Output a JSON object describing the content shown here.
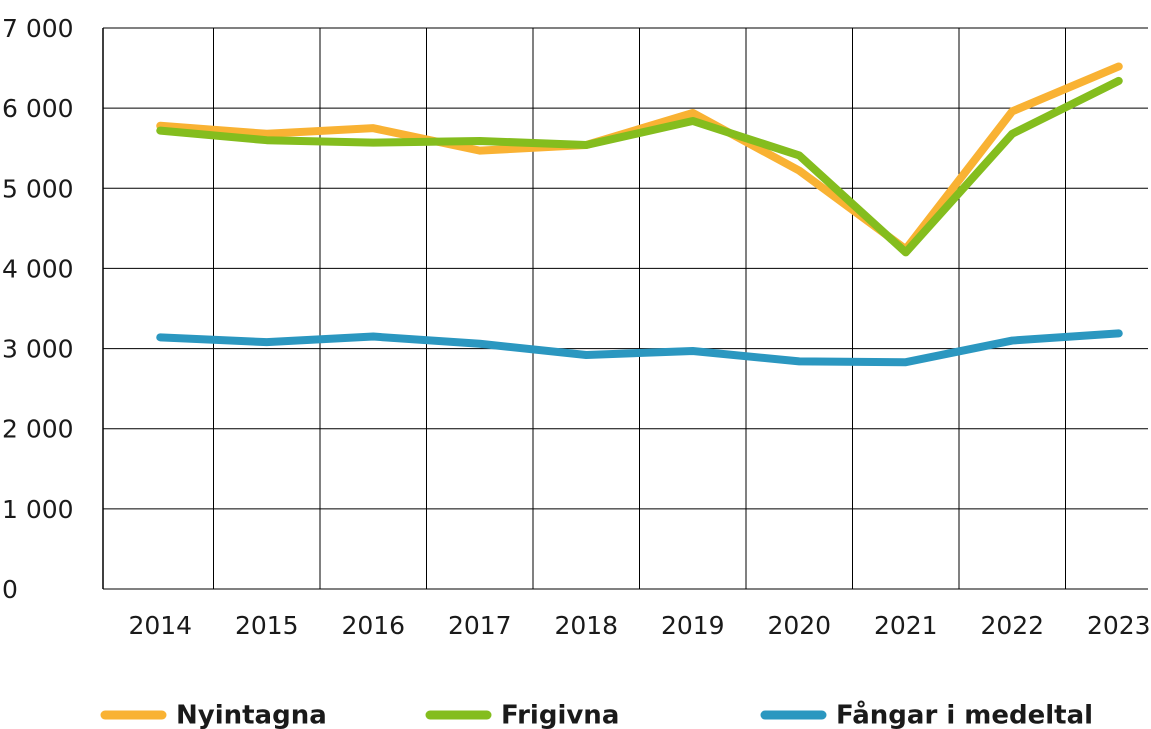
{
  "chart_data": {
    "type": "line",
    "categories": [
      "2014",
      "2015",
      "2016",
      "2017",
      "2018",
      "2019",
      "2020",
      "2021",
      "2022",
      "2023"
    ],
    "series": [
      {
        "name": "Nyintagna",
        "color": "#f9b233",
        "values": [
          5780,
          5680,
          5750,
          5470,
          5540,
          5940,
          5220,
          4240,
          5960,
          6520
        ]
      },
      {
        "name": "Frigivna",
        "color": "#84bd1e",
        "values": [
          5720,
          5600,
          5570,
          5590,
          5540,
          5840,
          5410,
          4200,
          5680,
          6340
        ]
      },
      {
        "name": "Fångar i medeltal",
        "color": "#2b97c0",
        "values": [
          3140,
          3080,
          3150,
          3060,
          2920,
          2970,
          2840,
          2830,
          3100,
          3190
        ]
      }
    ],
    "ylim": [
      0,
      7000
    ],
    "yticks": [
      0,
      {
        "value": 1000,
        "label": "1 000"
      },
      {
        "value": 2000,
        "label": "2 000"
      },
      {
        "value": 3000,
        "label": "3 000"
      },
      {
        "value": 4000,
        "label": "4 000"
      },
      {
        "value": 5000,
        "label": "5 000"
      },
      {
        "value": 6000,
        "label": "6 000"
      },
      {
        "value": 7000,
        "label": "7 000"
      }
    ],
    "grid": true,
    "legend": "bottom"
  }
}
